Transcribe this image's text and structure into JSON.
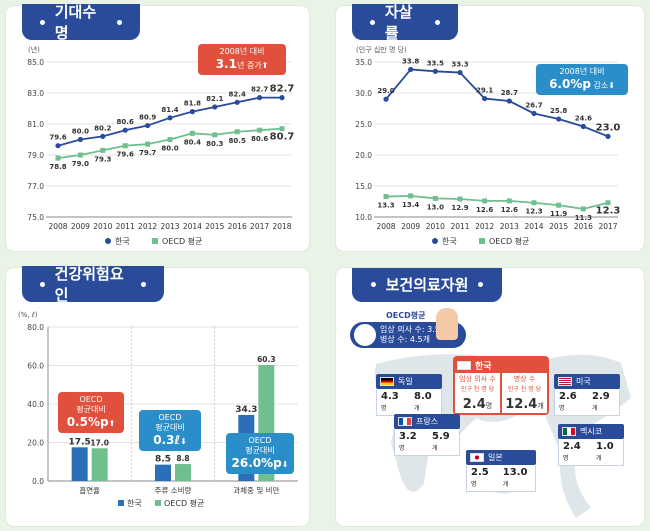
{
  "panels": {
    "life": {
      "title": "기대수명"
    },
    "suicide": {
      "title": "자살률"
    },
    "risk": {
      "title": "건강위험요인"
    },
    "resources": {
      "title": "보건의료자원"
    }
  },
  "chart_data": [
    {
      "type": "line",
      "title": "기대수명",
      "unit": "(년)",
      "x": [
        "2008",
        "2009",
        "2010",
        "2011",
        "2012",
        "2013",
        "2014",
        "2015",
        "2016",
        "2017",
        "2018"
      ],
      "ylim": [
        75.0,
        85.0
      ],
      "yticks": [
        "85.0",
        "83.0",
        "81.0",
        "79.0",
        "77.0",
        "75.0"
      ],
      "series": [
        {
          "name": "한국",
          "color": "#2a4b99",
          "values": [
            79.6,
            80.0,
            80.2,
            80.6,
            80.9,
            81.4,
            81.8,
            82.1,
            82.4,
            82.7,
            82.7
          ],
          "labels": [
            "79.6",
            "80.0",
            "80.2",
            "80.6",
            "80.9",
            "81.4",
            "81.8",
            "82.1",
            "82.4",
            "82.7",
            "82.7"
          ]
        },
        {
          "name": "OECD 평균",
          "color": "#6fbf8f",
          "values": [
            78.8,
            79.0,
            79.3,
            79.6,
            79.7,
            80.0,
            80.4,
            80.3,
            80.5,
            80.6,
            80.7
          ],
          "labels": [
            "78.8",
            "79.0",
            "79.3",
            "79.6",
            "79.7",
            "80.0",
            "80.4",
            "80.3",
            "80.5",
            "80.6",
            "80.7"
          ]
        }
      ],
      "annotation": {
        "line1": "2008년 대비",
        "value": "3.1",
        "unit": "년 증가",
        "arrow": "⬆"
      }
    },
    {
      "type": "line",
      "title": "자살률",
      "unit": "(인구 십만 명 당)",
      "x": [
        "2008",
        "2009",
        "2010",
        "2011",
        "2012",
        "2013",
        "2014",
        "2015",
        "2016",
        "2017"
      ],
      "ylim": [
        10.0,
        35.0
      ],
      "yticks": [
        "35.0",
        "30.0",
        "25.0",
        "20.0",
        "15.0",
        "10.0"
      ],
      "series": [
        {
          "name": "한국",
          "color": "#2a4b99",
          "values": [
            29.0,
            33.8,
            33.5,
            33.3,
            29.1,
            28.7,
            26.7,
            25.8,
            24.6,
            23.0
          ],
          "labels": [
            "29.0",
            "33.8",
            "33.5",
            "33.3",
            "29.1",
            "28.7",
            "26.7",
            "25.8",
            "24.6",
            "23.0"
          ]
        },
        {
          "name": "OECD 평균",
          "color": "#6fbf8f",
          "values": [
            13.3,
            13.4,
            13.0,
            12.9,
            12.6,
            12.6,
            12.3,
            11.9,
            11.3,
            12.3
          ],
          "labels": [
            "13.3",
            "13.4",
            "13.0",
            "12.9",
            "12.6",
            "12.6",
            "12.3",
            "11.9",
            "11.3",
            "12.3"
          ]
        }
      ],
      "annotation": {
        "line1": "2008년 대비",
        "value": "6.0%p",
        "unit": "감소",
        "arrow": "⬇"
      }
    },
    {
      "type": "bar",
      "title": "건강위험요인",
      "unit": "(%, ℓ)",
      "categories": [
        "흡연율",
        "주류 소비량",
        "과체중 및 비만"
      ],
      "ylim": [
        0,
        80
      ],
      "yticks": [
        "80.0",
        "60.0",
        "40.0",
        "20.0",
        "0.0"
      ],
      "series": [
        {
          "name": "한국",
          "color": "#2a6fb8",
          "values": [
            17.5,
            8.5,
            34.3
          ],
          "labels": [
            "17.5",
            "8.5",
            "34.3"
          ]
        },
        {
          "name": "OECD 평균",
          "color": "#6fbf8f",
          "values": [
            17.0,
            8.8,
            60.3
          ],
          "labels": [
            "17.0",
            "8.8",
            "60.3"
          ]
        }
      ],
      "annotations": [
        {
          "line1": "OECD",
          "line2": "평균대비",
          "value": "0.5%p",
          "arrow": "⬆"
        },
        {
          "line1": "OECD",
          "line2": "평균대비",
          "value": "0.3ℓ",
          "arrow": "⬇"
        },
        {
          "line1": "OECD",
          "line2": "평균대비",
          "value": "26.0%p",
          "arrow": "⬇"
        }
      ]
    }
  ],
  "resources": {
    "oecd": {
      "title": "OECD평균",
      "doctors_label": "임상 의사 수",
      "doctors": "3.5",
      "doctors_unit": "명",
      "beds_label": "병상 수",
      "beds": "4.5",
      "beds_unit": "개"
    },
    "korea": {
      "name": "한국",
      "doctors_label": "임상 의사 수",
      "beds_label": "병상 수",
      "sub": "인구 천 명 당",
      "doctors": "2.4",
      "doctors_unit": "명",
      "beds": "12.4",
      "beds_unit": "개"
    },
    "countries": [
      {
        "name": "독일",
        "doctors": "4.3",
        "doctors_unit": "명",
        "beds": "8.0",
        "beds_unit": "개"
      },
      {
        "name": "프랑스",
        "doctors": "3.2",
        "doctors_unit": "명",
        "beds": "5.9",
        "beds_unit": "개"
      },
      {
        "name": "일본",
        "doctors": "2.5",
        "doctors_unit": "명",
        "beds": "13.0",
        "beds_unit": "개"
      },
      {
        "name": "미국",
        "doctors": "2.6",
        "doctors_unit": "명",
        "beds": "2.9",
        "beds_unit": "개"
      },
      {
        "name": "멕시코",
        "doctors": "2.4",
        "doctors_unit": "명",
        "beds": "1.0",
        "beds_unit": "개"
      }
    ]
  },
  "colors": {
    "navy": "#2a4b99",
    "green": "#6fbf8f",
    "red": "#e0503c",
    "blue": "#2a6fb8",
    "bg": "#eaf4e6"
  }
}
